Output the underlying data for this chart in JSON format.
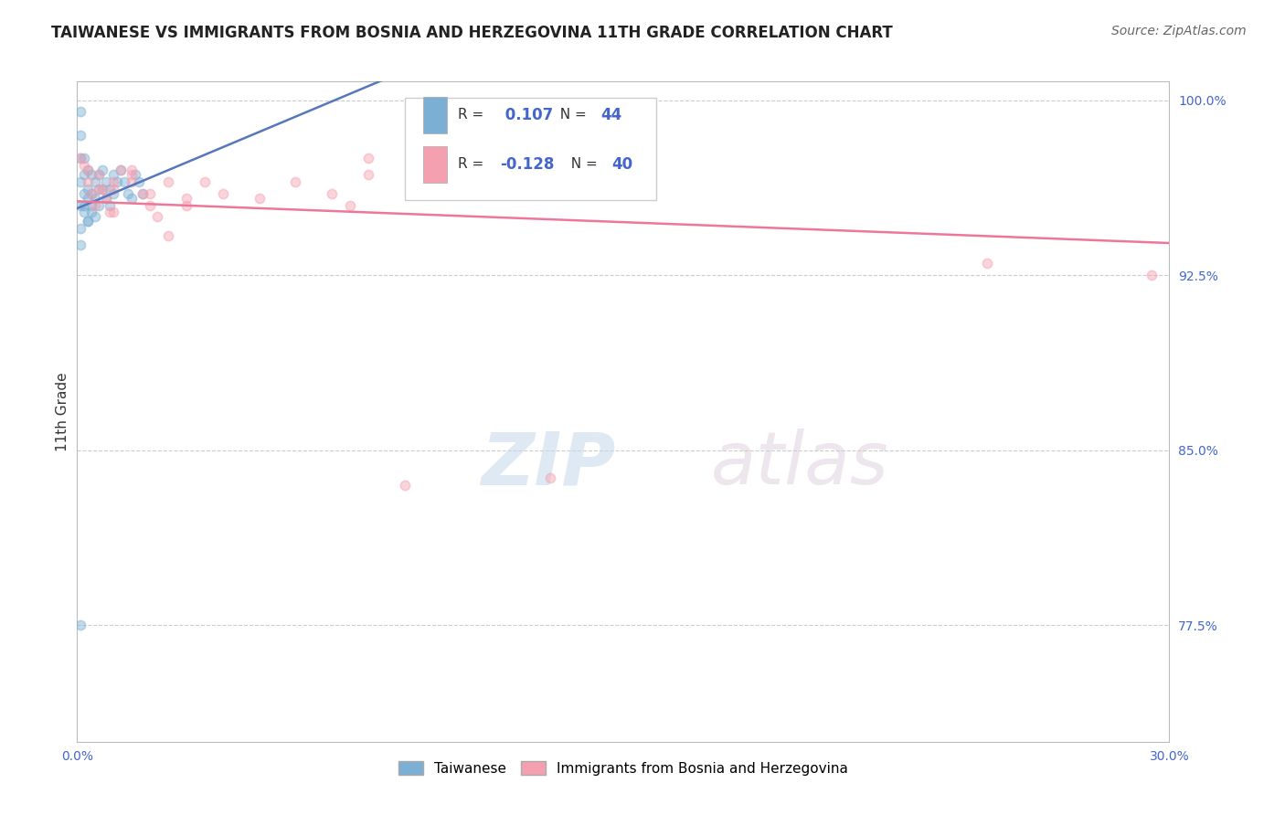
{
  "title": "TAIWANESE VS IMMIGRANTS FROM BOSNIA AND HERZEGOVINA 11TH GRADE CORRELATION CHART",
  "source": "Source: ZipAtlas.com",
  "ylabel": "11th Grade",
  "xmin": 0.0,
  "xmax": 0.3,
  "ymin": 0.725,
  "ymax": 1.008,
  "watermark": "ZIPatlas",
  "legend1_label": "Taiwanese",
  "legend2_label": "Immigrants from Bosnia and Herzegovina",
  "r1": 0.107,
  "n1": 44,
  "r2": -0.128,
  "n2": 40,
  "blue_color": "#7BAFD4",
  "pink_color": "#F4A0B0",
  "blue_line_color": "#5577BB",
  "pink_line_color": "#EE7799",
  "grid_color": "#CCCCCC",
  "taiwan_x": [
    0.001,
    0.001,
    0.001,
    0.001,
    0.001,
    0.002,
    0.002,
    0.002,
    0.002,
    0.003,
    0.003,
    0.003,
    0.003,
    0.004,
    0.004,
    0.004,
    0.005,
    0.005,
    0.005,
    0.006,
    0.006,
    0.006,
    0.007,
    0.007,
    0.008,
    0.008,
    0.009,
    0.009,
    0.01,
    0.01,
    0.011,
    0.012,
    0.013,
    0.014,
    0.015,
    0.016,
    0.017,
    0.018,
    0.001,
    0.001,
    0.002,
    0.003,
    0.004,
    0.001
  ],
  "taiwan_y": [
    0.995,
    0.985,
    0.975,
    0.965,
    0.955,
    0.975,
    0.968,
    0.96,
    0.952,
    0.97,
    0.962,
    0.958,
    0.948,
    0.968,
    0.96,
    0.952,
    0.965,
    0.958,
    0.95,
    0.968,
    0.962,
    0.955,
    0.97,
    0.962,
    0.965,
    0.958,
    0.962,
    0.955,
    0.968,
    0.96,
    0.965,
    0.97,
    0.965,
    0.96,
    0.958,
    0.968,
    0.965,
    0.96,
    0.945,
    0.938,
    0.955,
    0.948,
    0.955,
    0.775
  ],
  "bosnia_x": [
    0.001,
    0.002,
    0.003,
    0.004,
    0.005,
    0.006,
    0.007,
    0.008,
    0.009,
    0.01,
    0.012,
    0.015,
    0.018,
    0.02,
    0.022,
    0.025,
    0.03,
    0.035,
    0.04,
    0.05,
    0.06,
    0.07,
    0.075,
    0.08,
    0.09,
    0.095,
    0.1,
    0.25,
    0.295,
    0.003,
    0.006,
    0.01,
    0.015,
    0.02,
    0.025,
    0.03,
    0.01,
    0.015,
    0.08,
    0.13
  ],
  "bosnia_y": [
    0.975,
    0.972,
    0.965,
    0.96,
    0.955,
    0.968,
    0.962,
    0.958,
    0.952,
    0.965,
    0.97,
    0.965,
    0.96,
    0.955,
    0.95,
    0.965,
    0.955,
    0.965,
    0.96,
    0.958,
    0.965,
    0.96,
    0.955,
    0.968,
    0.835,
    0.96,
    0.97,
    0.93,
    0.925,
    0.97,
    0.962,
    0.952,
    0.97,
    0.96,
    0.942,
    0.958,
    0.962,
    0.968,
    0.975,
    0.838
  ]
}
